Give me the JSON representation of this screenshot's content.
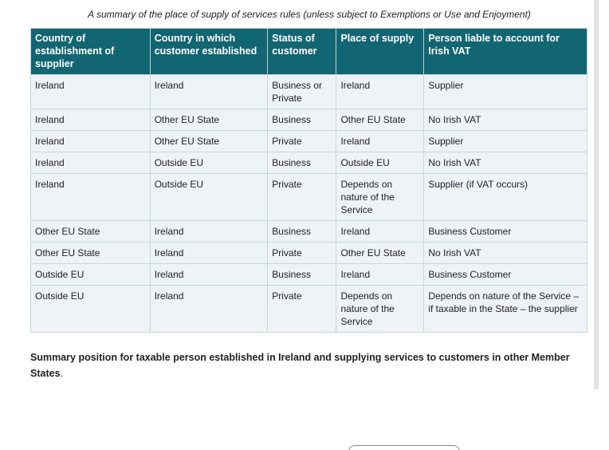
{
  "caption": "A summary of the place of supply of services rules (unless subject to Exemptions or Use and Enjoyment)",
  "table": {
    "headers": [
      "Country of establishment of supplier",
      "Country in which customer established",
      "Status of customer",
      "Place of supply",
      "Person liable to account for Irish VAT"
    ],
    "rows": [
      [
        "Ireland",
        "Ireland",
        "Business or Private",
        "Ireland",
        "Supplier"
      ],
      [
        "Ireland",
        "Other EU State",
        "Business",
        "Other EU State",
        "No Irish VAT"
      ],
      [
        "Ireland",
        "Other EU State",
        "Private",
        "Ireland",
        "Supplier"
      ],
      [
        "Ireland",
        "Outside EU",
        "Business",
        "Outside EU",
        "No Irish VAT"
      ],
      [
        "Ireland",
        "Outside EU",
        "Private",
        "Depends on nature of the Service",
        "Supplier (if VAT occurs)"
      ],
      [
        "Other EU State",
        "Ireland",
        "Business",
        "Ireland",
        "Business Customer"
      ],
      [
        "Other EU State",
        "Ireland",
        "Private",
        "Other EU State",
        "No Irish VAT"
      ],
      [
        "Outside EU",
        "Ireland",
        "Business",
        "Ireland",
        "Business Customer"
      ],
      [
        "Outside EU",
        "Ireland",
        "Private",
        "Depends on nature of the Service",
        "Depends on nature of the Service – if taxable in the State – the supplier"
      ]
    ]
  },
  "summary": {
    "bold": "Summary position for taxable person established in Ireland and supplying services to customers in other Member States",
    "tail": "."
  }
}
